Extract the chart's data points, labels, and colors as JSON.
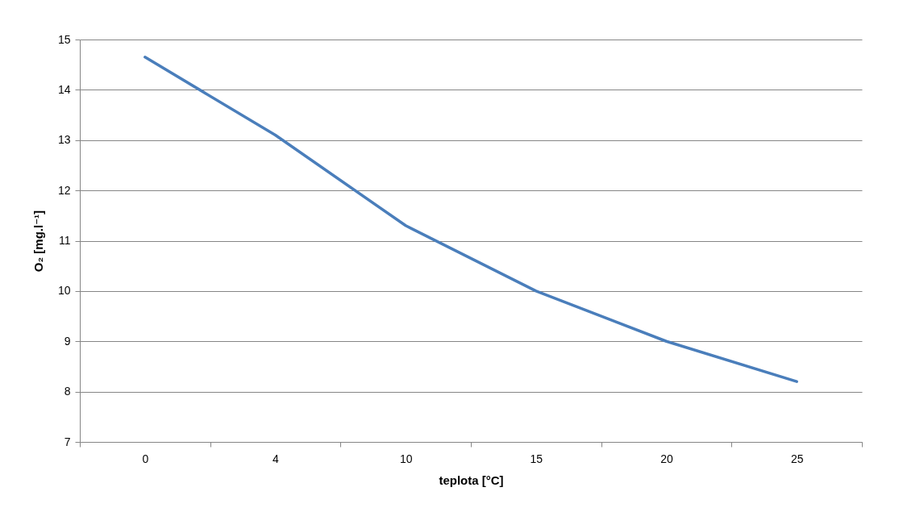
{
  "chart_data": {
    "type": "line",
    "xlabel": "teplota [°C]",
    "ylabel": "O₂ [mg.l⁻¹]",
    "categories": [
      "0",
      "4",
      "10",
      "15",
      "20",
      "25"
    ],
    "series": [
      {
        "color": "#4a7ebb",
        "values": [
          14.65,
          13.1,
          11.3,
          10.0,
          9.0,
          8.2
        ]
      }
    ],
    "ylim": [
      7,
      15
    ],
    "yticks": [
      7,
      8,
      9,
      10,
      11,
      12,
      13,
      14,
      15
    ],
    "grid": "y"
  }
}
